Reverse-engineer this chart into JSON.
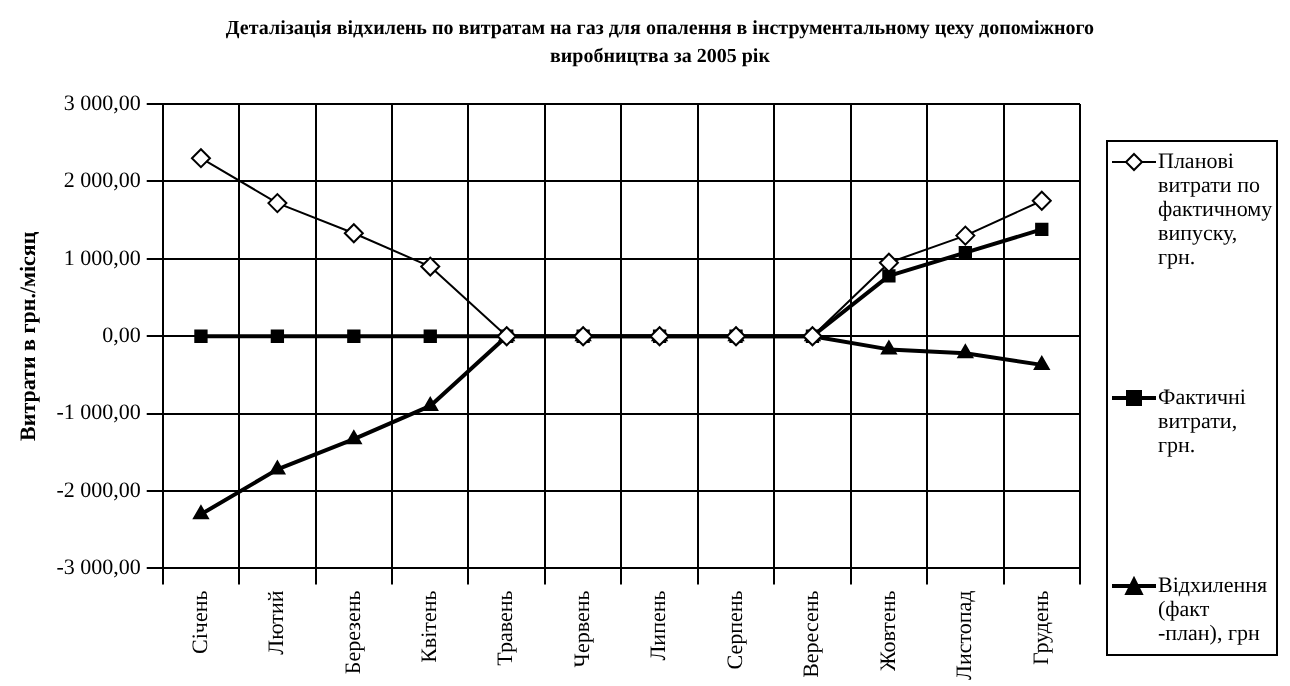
{
  "chart_data": {
    "type": "line",
    "title": "Деталізація відхилень по витратам на газ для опалення в інструментальному цеху допоміжного виробництва за 2005 рік",
    "ylabel": "Витрати в грн./місяц",
    "categories": [
      "Січень",
      "Лютий",
      "Березень",
      "Квітень",
      "Травень",
      "Червень",
      "Липень",
      "Серпень",
      "Вересень",
      "Жовтень",
      "Листопад",
      "Грудень"
    ],
    "series": [
      {
        "name": "Планові витрати по фактичному випуску, грн.",
        "color": "#000000",
        "marker": "diamond",
        "values": [
          2300,
          1720,
          1330,
          900,
          0,
          0,
          0,
          0,
          0,
          950,
          1300,
          1750
        ]
      },
      {
        "name": "Фактичні витрати, грн.",
        "color": "#000000",
        "marker": "square",
        "values": [
          0,
          0,
          0,
          0,
          0,
          0,
          0,
          0,
          0,
          780,
          1080,
          1380
        ]
      },
      {
        "name": "Відхилення (факт -план), грн",
        "color": "#000000",
        "marker": "triangle",
        "values": [
          -2300,
          -1720,
          -1330,
          -900,
          0,
          0,
          0,
          0,
          0,
          -170,
          -220,
          -370
        ]
      }
    ],
    "ylim": [
      -3000,
      3000
    ],
    "yticks": [
      {
        "value": -3000,
        "label": "-3 000,00"
      },
      {
        "value": -2000,
        "label": "-2 000,00"
      },
      {
        "value": -1000,
        "label": "-1 000,00"
      },
      {
        "value": 0,
        "label": "0,00"
      },
      {
        "value": 1000,
        "label": "1 000,00"
      },
      {
        "value": 2000,
        "label": "2 000,00"
      },
      {
        "value": 3000,
        "label": "3 000,00"
      }
    ],
    "grid": true,
    "legend": "right"
  }
}
